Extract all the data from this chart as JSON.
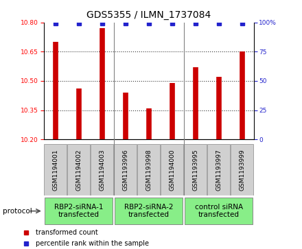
{
  "title": "GDS5355 / ILMN_1737084",
  "samples": [
    "GSM1194001",
    "GSM1194002",
    "GSM1194003",
    "GSM1193996",
    "GSM1193998",
    "GSM1194000",
    "GSM1193995",
    "GSM1193997",
    "GSM1193999"
  ],
  "bar_values": [
    10.7,
    10.46,
    10.77,
    10.44,
    10.36,
    10.49,
    10.57,
    10.52,
    10.65
  ],
  "percentile_values": [
    99,
    99,
    99,
    99,
    99,
    99,
    99,
    99,
    99
  ],
  "ylim_left": [
    10.2,
    10.8
  ],
  "ylim_right": [
    0,
    100
  ],
  "yticks_left": [
    10.2,
    10.35,
    10.5,
    10.65,
    10.8
  ],
  "yticks_right": [
    0,
    25,
    50,
    75,
    100
  ],
  "bar_color": "#cc0000",
  "dot_color": "#2222cc",
  "background_color": "#ffffff",
  "plot_bg_color": "#ffffff",
  "groups": [
    {
      "label": "RBP2-siRNA-1\ntransfected",
      "start": 0,
      "end": 3,
      "color": "#88ee88"
    },
    {
      "label": "RBP2-siRNA-2\ntransfected",
      "start": 3,
      "end": 6,
      "color": "#88ee88"
    },
    {
      "label": "control siRNA\ntransfected",
      "start": 6,
      "end": 9,
      "color": "#88ee88"
    }
  ],
  "legend_items": [
    {
      "label": "transformed count",
      "color": "#cc0000"
    },
    {
      "label": "percentile rank within the sample",
      "color": "#2222cc"
    }
  ],
  "protocol_label": "protocol",
  "title_fontsize": 10,
  "tick_fontsize": 6.5,
  "group_fontsize": 7.5
}
